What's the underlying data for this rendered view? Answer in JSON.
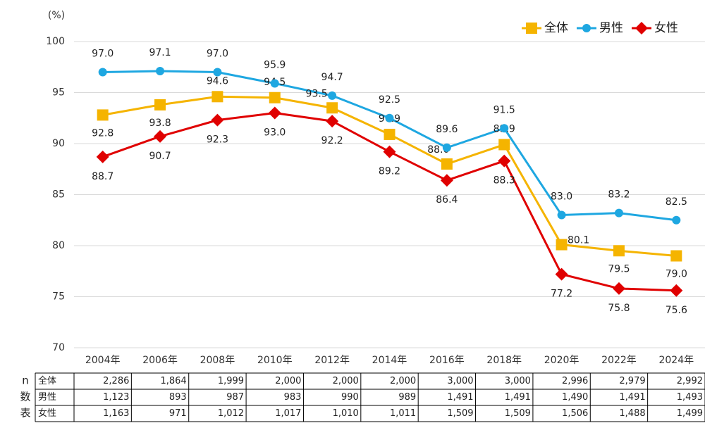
{
  "chart_data": {
    "type": "line",
    "y_unit_label": "(%)",
    "categories": [
      "2004年",
      "2006年",
      "2008年",
      "2010年",
      "2012年",
      "2014年",
      "2016年",
      "2018年",
      "2020年",
      "2022年",
      "2024年"
    ],
    "series": [
      {
        "name": "全体",
        "color": "#f5b400",
        "marker": "square",
        "values": [
          92.8,
          93.8,
          94.6,
          94.5,
          93.5,
          90.9,
          88.0,
          89.9,
          80.1,
          79.5,
          79.0
        ],
        "value_labels": [
          "92.8",
          "93.8",
          "94.6",
          "94.5",
          "93.5",
          "90.9",
          "88.0",
          "89.9",
          "80.1",
          "79.5",
          "79.0"
        ]
      },
      {
        "name": "男性",
        "color": "#1ea7e1",
        "marker": "circle",
        "values": [
          97.0,
          97.1,
          97.0,
          95.9,
          94.7,
          92.5,
          89.6,
          91.5,
          83.0,
          83.2,
          82.5
        ],
        "value_labels": [
          "97.0",
          "97.1",
          "97.0",
          "95.9",
          "94.7",
          "92.5",
          "89.6",
          "91.5",
          "83.0",
          "83.2",
          "82.5"
        ]
      },
      {
        "name": "女性",
        "color": "#e00000",
        "marker": "diamond",
        "values": [
          88.7,
          90.7,
          92.3,
          93.0,
          92.2,
          89.2,
          86.4,
          88.3,
          77.2,
          75.8,
          75.6
        ],
        "value_labels": [
          "88.7",
          "90.7",
          "92.3",
          "93.0",
          "92.2",
          "89.2",
          "86.4",
          "88.3",
          "77.2",
          "75.8",
          "75.6"
        ]
      }
    ],
    "ylim": [
      70,
      100
    ],
    "yticks": [
      70,
      75,
      80,
      85,
      90,
      95,
      100
    ],
    "grid": true,
    "legend": "top-right"
  },
  "table": {
    "row_header": [
      "n",
      "数",
      "表"
    ],
    "rows": [
      {
        "label": "全体",
        "values": [
          "2,286",
          "1,864",
          "1,999",
          "2,000",
          "2,000",
          "2,000",
          "3,000",
          "3,000",
          "2,996",
          "2,979",
          "2,992"
        ]
      },
      {
        "label": "男性",
        "values": [
          "1,123",
          "893",
          "987",
          "983",
          "990",
          "989",
          "1,491",
          "1,491",
          "1,490",
          "1,491",
          "1,493"
        ]
      },
      {
        "label": "女性",
        "values": [
          "1,163",
          "971",
          "1,012",
          "1,017",
          "1,010",
          "1,011",
          "1,509",
          "1,509",
          "1,506",
          "1,488",
          "1,499"
        ]
      }
    ]
  }
}
